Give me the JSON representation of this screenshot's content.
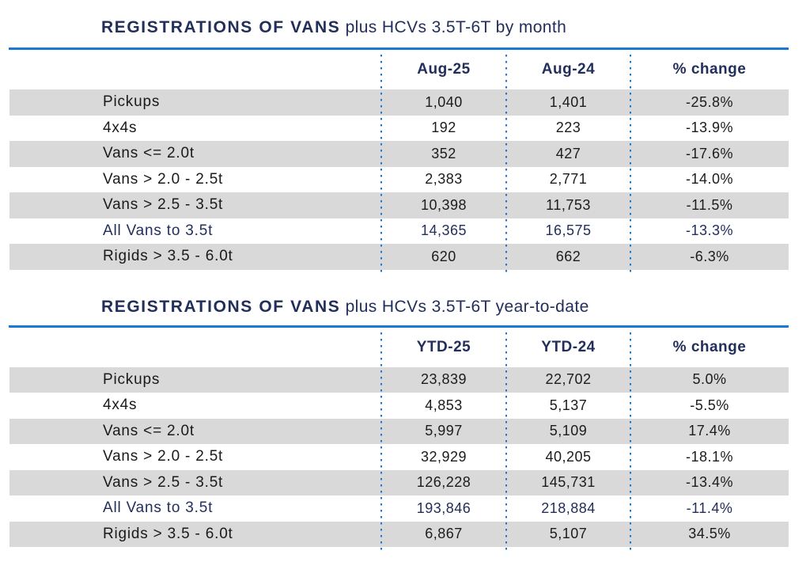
{
  "colors": {
    "navy_text": "#232f5b",
    "accent_blue_rule": "#1b78d0",
    "row_band_gray": "#d9d9d9",
    "body_text": "#1a1a1a"
  },
  "chart_data": [
    {
      "type": "table",
      "title_bold": "REGISTRATIONS OF VANS",
      "title_rest": " plus HCVs 3.5T-6T by month",
      "columns": [
        "Aug-25",
        "Aug-24",
        "% change"
      ],
      "rows": [
        {
          "label": "Pickups",
          "values": [
            "1,040",
            "1,401",
            "-25.8%"
          ],
          "emphasis": false
        },
        {
          "label": "4x4s",
          "values": [
            "192",
            "223",
            "-13.9%"
          ],
          "emphasis": false
        },
        {
          "label": "Vans <= 2.0t",
          "values": [
            "352",
            "427",
            "-17.6%"
          ],
          "emphasis": false
        },
        {
          "label": "Vans > 2.0 - 2.5t",
          "values": [
            "2,383",
            "2,771",
            "-14.0%"
          ],
          "emphasis": false
        },
        {
          "label": "Vans > 2.5 - 3.5t",
          "values": [
            "10,398",
            "11,753",
            "-11.5%"
          ],
          "emphasis": false
        },
        {
          "label": "All Vans to 3.5t",
          "values": [
            "14,365",
            "16,575",
            "-13.3%"
          ],
          "emphasis": true
        },
        {
          "label": "Rigids > 3.5 - 6.0t",
          "values": [
            "620",
            "662",
            "-6.3%"
          ],
          "emphasis": false
        }
      ]
    },
    {
      "type": "table",
      "title_bold": "REGISTRATIONS OF VANS",
      "title_rest": " plus HCVs 3.5T-6T year-to-date",
      "columns": [
        "YTD-25",
        "YTD-24",
        "% change"
      ],
      "rows": [
        {
          "label": "Pickups",
          "values": [
            "23,839",
            "22,702",
            "5.0%"
          ],
          "emphasis": false
        },
        {
          "label": "4x4s",
          "values": [
            "4,853",
            "5,137",
            "-5.5%"
          ],
          "emphasis": false
        },
        {
          "label": "Vans <= 2.0t",
          "values": [
            "5,997",
            "5,109",
            "17.4%"
          ],
          "emphasis": false
        },
        {
          "label": "Vans > 2.0 - 2.5t",
          "values": [
            "32,929",
            "40,205",
            "-18.1%"
          ],
          "emphasis": false
        },
        {
          "label": "Vans > 2.5 - 3.5t",
          "values": [
            "126,228",
            "145,731",
            "-13.4%"
          ],
          "emphasis": false
        },
        {
          "label": "All Vans to 3.5t",
          "values": [
            "193,846",
            "218,884",
            "-11.4%"
          ],
          "emphasis": true
        },
        {
          "label": "Rigids > 3.5 - 6.0t",
          "values": [
            "6,867",
            "5,107",
            "34.5%"
          ],
          "emphasis": false
        }
      ]
    }
  ]
}
